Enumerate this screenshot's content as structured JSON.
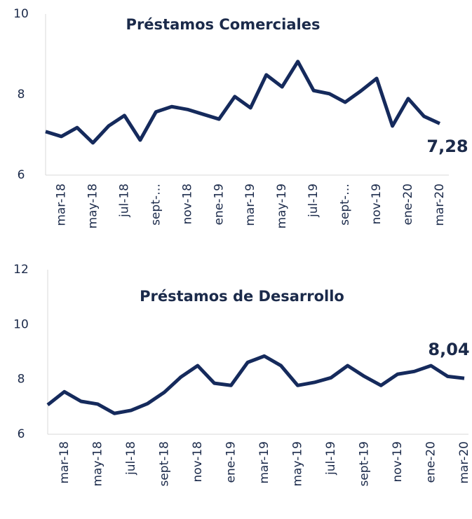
{
  "chart_data": [
    {
      "type": "line",
      "title": "Préstamos Comerciales",
      "categories": [
        null,
        "mar-18",
        null,
        "may-18",
        null,
        "jul-18",
        null,
        "sept-…",
        null,
        "nov-18",
        null,
        "ene-19",
        null,
        "mar-19",
        null,
        "may-19",
        null,
        "jul-19",
        null,
        "sept-…",
        null,
        "nov-19",
        null,
        "ene-20",
        null,
        "mar-20"
      ],
      "series": [
        {
          "color": "#152a5c",
          "values": [
            7.08,
            6.96,
            7.18,
            6.8,
            7.22,
            7.48,
            6.87,
            7.57,
            7.7,
            7.63,
            7.51,
            7.39,
            7.95,
            7.67,
            8.49,
            8.19,
            8.82,
            8.1,
            8.02,
            7.81,
            8.09,
            8.4,
            7.22,
            7.9,
            7.46,
            7.28
          ],
          "value_labels": [
            null,
            null,
            null,
            null,
            null,
            null,
            null,
            null,
            null,
            null,
            null,
            null,
            null,
            null,
            null,
            null,
            null,
            null,
            null,
            null,
            null,
            null,
            null,
            null,
            null,
            "7,28"
          ]
        }
      ],
      "ylim": [
        6,
        10
      ],
      "yticks": [
        6,
        8,
        10
      ]
    },
    {
      "type": "line",
      "title": "Préstamos de Desarrollo",
      "categories": [
        null,
        "mar-18",
        null,
        "may-18",
        null,
        "jul-18",
        null,
        "sept-18",
        null,
        "nov-18",
        null,
        "ene-19",
        null,
        "mar-19",
        null,
        "may-19",
        null,
        "jul-19",
        null,
        "sept-19",
        null,
        "nov-19",
        null,
        "ene-20",
        null,
        "mar-20"
      ],
      "series": [
        {
          "color": "#152a5c",
          "values": [
            7.07,
            7.55,
            7.2,
            7.1,
            6.76,
            6.87,
            7.12,
            7.53,
            8.09,
            8.5,
            7.86,
            7.78,
            8.62,
            8.85,
            8.5,
            7.78,
            7.89,
            8.06,
            8.5,
            8.11,
            7.78,
            8.19,
            8.29,
            8.5,
            8.11,
            8.04
          ],
          "value_labels": [
            null,
            null,
            null,
            null,
            null,
            null,
            null,
            null,
            null,
            null,
            null,
            null,
            null,
            null,
            null,
            null,
            null,
            null,
            null,
            null,
            null,
            null,
            null,
            null,
            null,
            "8,04"
          ]
        }
      ],
      "ylim": [
        6,
        12
      ],
      "yticks": [
        6,
        8,
        10,
        12
      ]
    }
  ]
}
